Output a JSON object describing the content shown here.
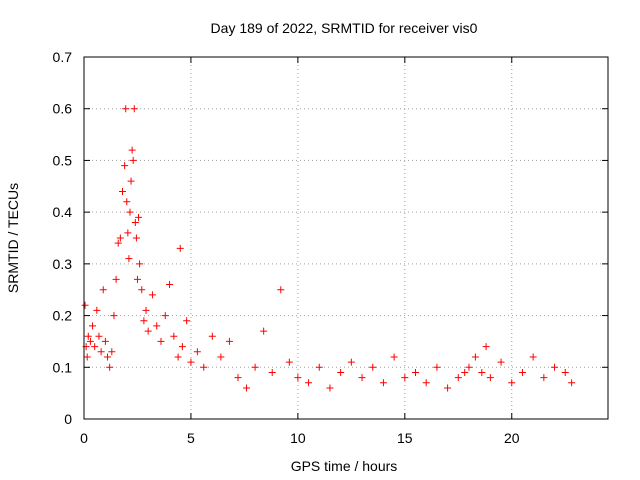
{
  "chart_data": {
    "type": "scatter",
    "title": "Day 189 of 2022, SRMTID for receiver vis0",
    "xlabel": "GPS time / hours",
    "ylabel": "SRMTID / TECUs",
    "xlim": [
      0,
      24.5
    ],
    "ylim": [
      0,
      0.7
    ],
    "xticks": [
      0,
      5,
      10,
      15,
      20
    ],
    "xtick_labels": [
      "0",
      "5",
      "10",
      "15",
      "20"
    ],
    "yticks": [
      0,
      0.1,
      0.2,
      0.3,
      0.4,
      0.5,
      0.6,
      0.7
    ],
    "ytick_labels": [
      "0",
      "0.1",
      "0.2",
      "0.3",
      "0.4",
      "0.5",
      "0.6",
      "0.7"
    ],
    "grid": true,
    "marker": "+",
    "color": "#ff0000",
    "series": [
      {
        "name": "vis0",
        "x": [
          0.05,
          0.1,
          0.15,
          0.2,
          0.3,
          0.4,
          0.5,
          0.6,
          0.7,
          0.8,
          0.9,
          1.0,
          1.1,
          1.2,
          1.3,
          1.4,
          1.5,
          1.6,
          1.7,
          1.8,
          1.9,
          1.95,
          2.0,
          2.05,
          2.1,
          2.15,
          2.2,
          2.25,
          2.3,
          2.35,
          2.4,
          2.45,
          2.5,
          2.55,
          2.6,
          2.7,
          2.8,
          2.9,
          3.0,
          3.2,
          3.4,
          3.6,
          3.8,
          4.0,
          4.2,
          4.4,
          4.5,
          4.6,
          4.8,
          5.0,
          5.3,
          5.6,
          6.0,
          6.4,
          6.8,
          7.2,
          7.6,
          8.0,
          8.4,
          8.8,
          9.2,
          9.6,
          10.0,
          10.5,
          11.0,
          11.5,
          12.0,
          12.5,
          13.0,
          13.5,
          14.0,
          14.5,
          15.0,
          15.5,
          16.0,
          16.5,
          17.0,
          17.5,
          17.8,
          18.0,
          18.3,
          18.6,
          18.8,
          19.0,
          19.5,
          20.0,
          20.5,
          21.0,
          21.5,
          22.0,
          22.5,
          22.8
        ],
        "y": [
          0.22,
          0.14,
          0.12,
          0.16,
          0.15,
          0.18,
          0.14,
          0.21,
          0.16,
          0.13,
          0.25,
          0.15,
          0.12,
          0.1,
          0.13,
          0.2,
          0.27,
          0.34,
          0.35,
          0.44,
          0.49,
          0.6,
          0.42,
          0.36,
          0.31,
          0.4,
          0.46,
          0.52,
          0.5,
          0.6,
          0.38,
          0.35,
          0.27,
          0.39,
          0.3,
          0.25,
          0.19,
          0.21,
          0.17,
          0.24,
          0.18,
          0.15,
          0.2,
          0.26,
          0.16,
          0.12,
          0.33,
          0.14,
          0.19,
          0.11,
          0.13,
          0.1,
          0.16,
          0.12,
          0.15,
          0.08,
          0.06,
          0.1,
          0.17,
          0.09,
          0.25,
          0.11,
          0.08,
          0.07,
          0.1,
          0.06,
          0.09,
          0.11,
          0.08,
          0.1,
          0.07,
          0.12,
          0.08,
          0.09,
          0.07,
          0.1,
          0.06,
          0.08,
          0.09,
          0.1,
          0.12,
          0.09,
          0.14,
          0.08,
          0.11,
          0.07,
          0.09,
          0.12,
          0.08,
          0.1,
          0.09,
          0.07
        ]
      }
    ]
  }
}
